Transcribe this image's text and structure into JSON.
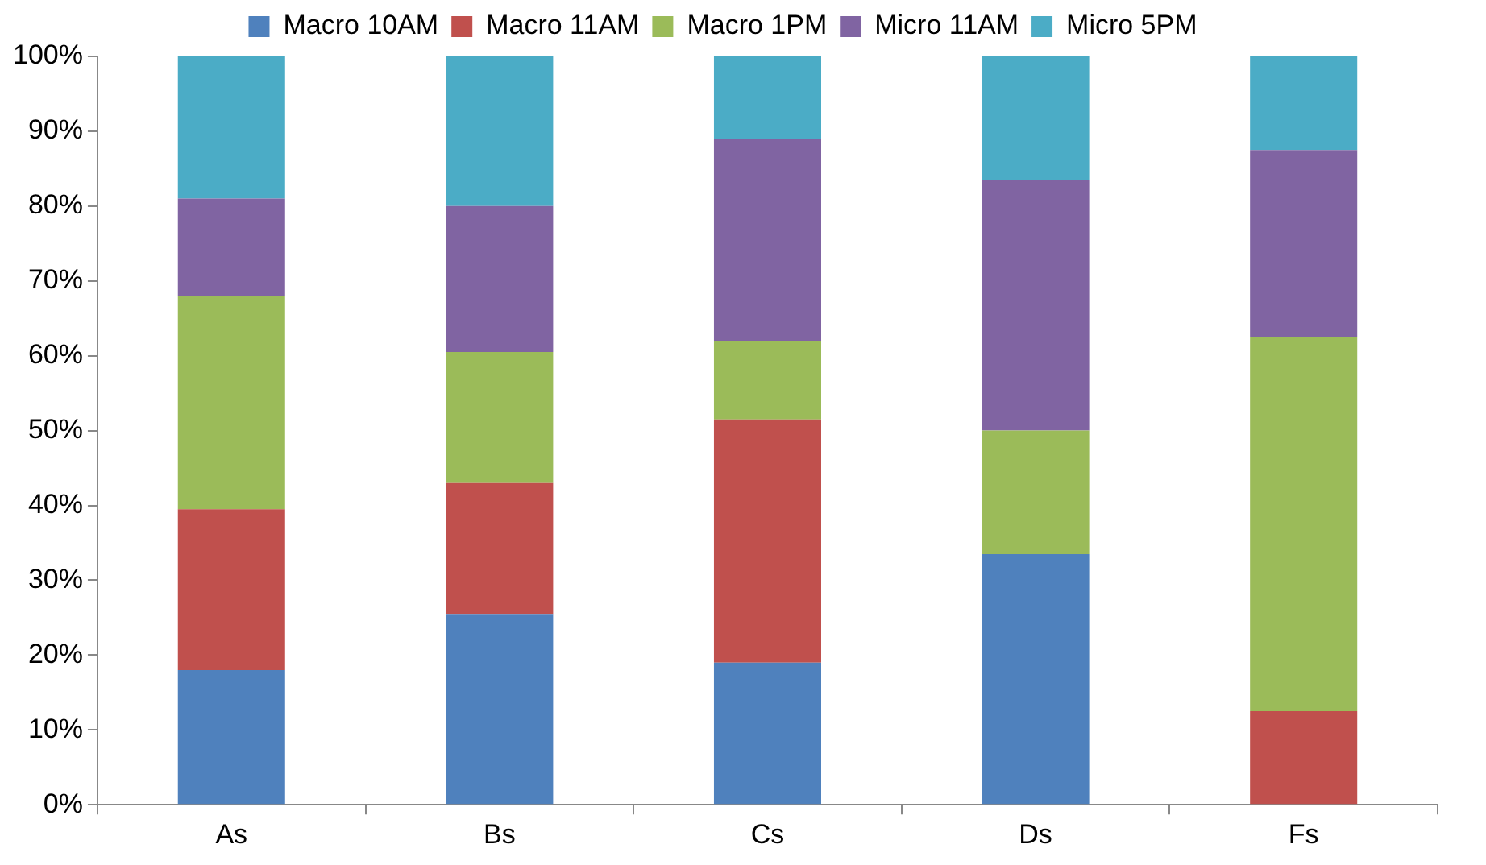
{
  "chart_data": {
    "type": "bar",
    "stacked": true,
    "categories": [
      "As",
      "Bs",
      "Cs",
      "Ds",
      "Fs"
    ],
    "series": [
      {
        "name": "Macro 10AM",
        "color": "#4f81bd",
        "values": [
          18,
          25.5,
          19,
          33.5,
          0
        ]
      },
      {
        "name": "Macro 11AM",
        "color": "#c0504d",
        "values": [
          21.5,
          17.5,
          32.5,
          0,
          12.5
        ]
      },
      {
        "name": "Macro 1PM",
        "color": "#9bbb59",
        "values": [
          28.5,
          17.5,
          10.5,
          16.5,
          50
        ]
      },
      {
        "name": "Micro 11AM",
        "color": "#8064a2",
        "values": [
          13,
          19.5,
          27,
          33.5,
          25
        ]
      },
      {
        "name": "Micro 5PM",
        "color": "#4bacc6",
        "values": [
          19,
          20,
          11,
          16.5,
          12.5
        ]
      }
    ],
    "ylim": [
      0,
      100
    ],
    "yticks": [
      {
        "value": 0,
        "label": "0%"
      },
      {
        "value": 10,
        "label": "10%"
      },
      {
        "value": 20,
        "label": "20%"
      },
      {
        "value": 30,
        "label": "30%"
      },
      {
        "value": 40,
        "label": "40%"
      },
      {
        "value": 50,
        "label": "50%"
      },
      {
        "value": 60,
        "label": "60%"
      },
      {
        "value": 70,
        "label": "70%"
      },
      {
        "value": 80,
        "label": "80%"
      },
      {
        "value": 90,
        "label": "90%"
      },
      {
        "value": 100,
        "label": "100%"
      }
    ],
    "grid": false,
    "legend": "top"
  }
}
